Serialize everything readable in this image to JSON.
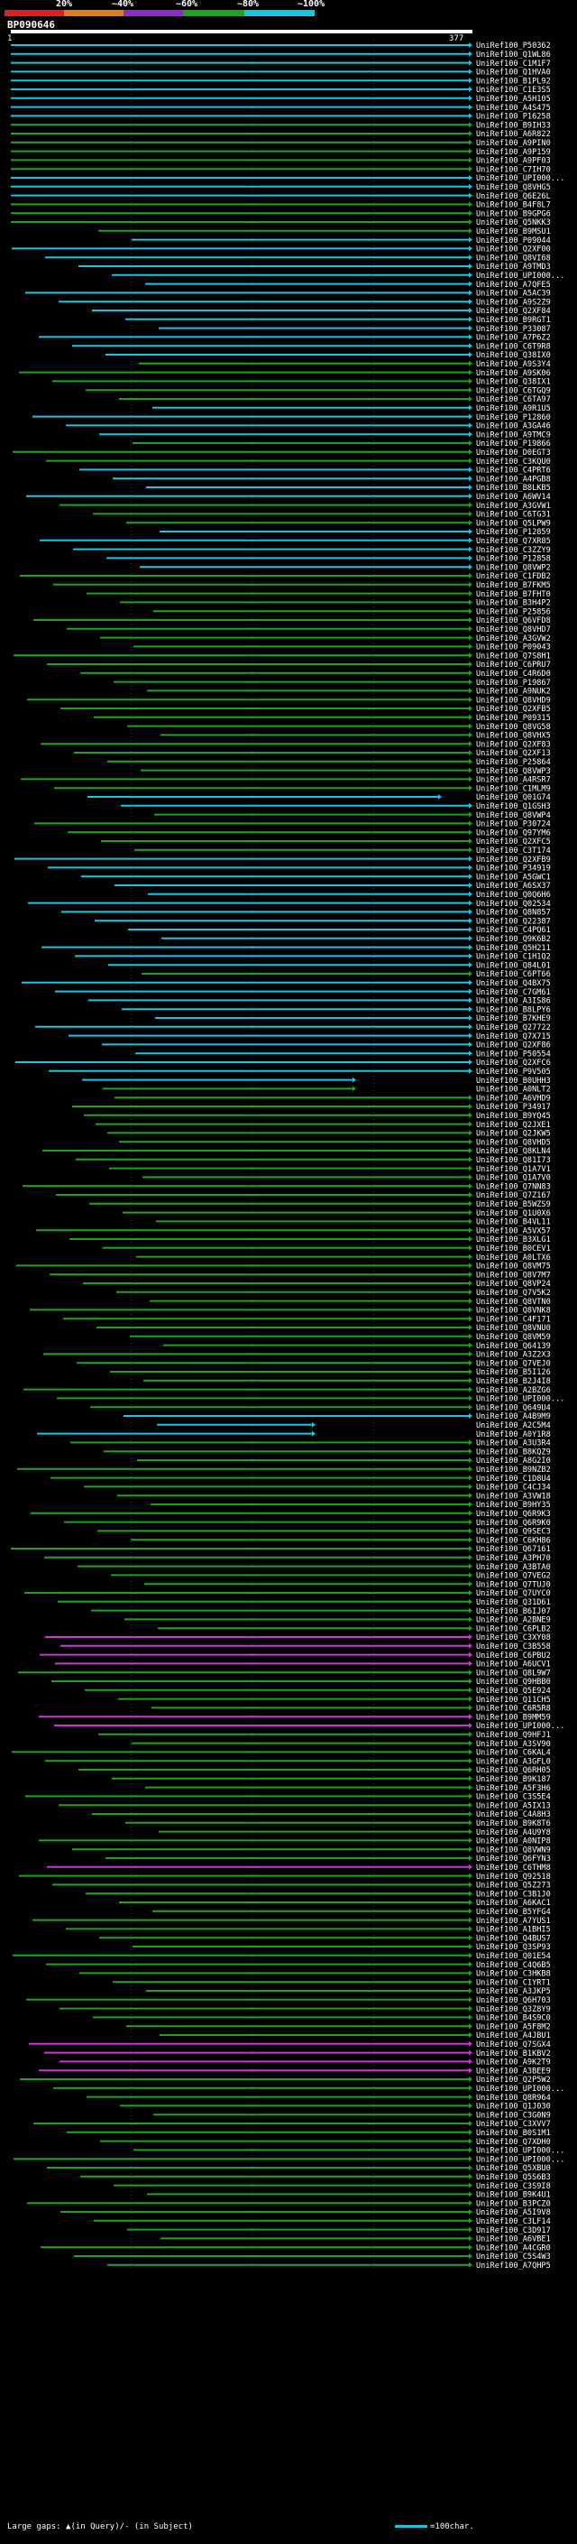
{
  "legend": {
    "labels": [
      "20%",
      "~40%",
      "~60%",
      "~80%",
      "~100%"
    ],
    "colors": [
      "#e0201c",
      "#e07e19",
      "#8c2bc8",
      "#1ea51e",
      "#19c6e0"
    ]
  },
  "query": {
    "id": "BP090646",
    "start": "1",
    "end": "377"
  },
  "footer": {
    "gaps_text": "Large gaps: ▲(in Query)/- (in Subject)",
    "scale_text": "=100char."
  },
  "hits": [
    "UniRef100_P50362",
    "UniRef100_Q1WL86",
    "UniRef100_C1M1F7",
    "UniRef100_Q1HVA0",
    "UniRef100_B1PL92",
    "UniRef100_C1E3S5",
    "UniRef100_A5H105",
    "UniRef100_A4S475",
    "UniRef100_P16258",
    "UniRef100_B9IH33",
    "UniRef100_A6R822",
    "UniRef100_A9PIN0",
    "UniRef100_A9P159",
    "UniRef100_A9PF03",
    "UniRef100_C7IH70",
    "UniRef100_UPI000...",
    "UniRef100_Q8VHG5",
    "UniRef100_Q6E26L",
    "UniRef100_B4F8L7",
    "UniRef100_B9GPG6",
    "UniRef100_Q5NKK3",
    "UniRef100_B9MSU1",
    "UniRef100_P09044",
    "UniRef100_Q2XF00",
    "UniRef100_Q8VI68",
    "UniRef100_A9TMD3",
    "UniRef100_UPI000...",
    "UniRef100_A7QFE5",
    "UniRef100_A5AC39",
    "UniRef100_A9S2Z9",
    "UniRef100_Q2XF84",
    "UniRef100_B9RGT1",
    "UniRef100_P33087",
    "UniRef100_A7P6Z2",
    "UniRef100_C6T9R8",
    "UniRef100_Q38IX0",
    "UniRef100_A9S3Y4",
    "UniRef100_A9SK06",
    "UniRef100_Q38IX1",
    "UniRef100_C6TGQ9",
    "UniRef100_C6TA97",
    "UniRef100_A9R1U5",
    "UniRef100_P12860",
    "UniRef100_A3GA46",
    "UniRef100_A9TMC9",
    "UniRef100_P19866",
    "UniRef100_D0EGT3",
    "UniRef100_C3KQU0",
    "UniRef100_C4PRT6",
    "UniRef100_A4PGB8",
    "UniRef100_B8LKB5",
    "UniRef100_A6WV14",
    "UniRef100_A3GVW1",
    "UniRef100_C6TG31",
    "UniRef100_Q5LPW9",
    "UniRef100_P12859",
    "UniRef100_Q7XR85",
    "UniRef100_C3ZZY9",
    "UniRef100_P12858",
    "UniRef100_Q8VWP2",
    "UniRef100_C1FDB2",
    "UniRef100_B7FKM5",
    "UniRef100_B7FHT0",
    "UniRef100_B3H4P2",
    "UniRef100_P25856",
    "UniRef100_Q6VFD8",
    "UniRef100_Q8VHD7",
    "UniRef100_A3GVW2",
    "UniRef100_P09043",
    "UniRef100_Q7S8H1",
    "UniRef100_C6PRU7",
    "UniRef100_C4R6D0",
    "UniRef100_P19867",
    "UniRef100_A9NUK2",
    "UniRef100_Q8VHD9",
    "UniRef100_Q2XFB5",
    "UniRef100_P09315",
    "UniRef100_Q8VG58",
    "UniRef100_Q8VHX5",
    "UniRef100_Q2XF83",
    "UniRef100_Q2XF13",
    "UniRef100_P25864",
    "UniRef100_Q8VWP3",
    "UniRef100_A4RSR7",
    "UniRef100_C1MLM9",
    "UniRef100_Q01G74",
    "UniRef100_Q1GSH3",
    "UniRef100_Q8VWP4",
    "UniRef100_P30724",
    "UniRef100_Q97YM6",
    "UniRef100_Q2XFC5",
    "UniRef100_C3T174",
    "UniRef100_Q2XFB9",
    "UniRef100_P34919",
    "UniRef100_A5GWC1",
    "UniRef100_A6SX37",
    "UniRef100_Q0Q6H6",
    "UniRef100_Q02534",
    "UniRef100_Q8N857",
    "UniRef100_Q22387",
    "UniRef100_C4PQ61",
    "UniRef100_Q9K6B2",
    "UniRef100_Q5H211",
    "UniRef100_C1H1Q2",
    "UniRef100_Q84L01",
    "UniRef100_C6PT66",
    "UniRef100_Q4BX75",
    "UniRef100_C7GM61",
    "UniRef100_A3IS86",
    "UniRef100_B8LPY6",
    "UniRef100_B7KHE9",
    "UniRef100_Q27722",
    "UniRef100_Q7X715",
    "UniRef100_Q2XF86",
    "UniRef100_P50554",
    "UniRef100_Q2XFC6",
    "UniRef100_P9V505",
    "UniRef100_B0UHH3",
    "UniRef100_A0NLT2",
    "UniRef100_A6VHD9",
    "UniRef100_P34917",
    "UniRef100_B9YQ45",
    "UniRef100_Q2JXE1",
    "UniRef100_Q2JKW5",
    "UniRef100_Q8VHD5",
    "UniRef100_Q8KLN4",
    "UniRef100_Q81I73",
    "UniRef100_Q1A7V1",
    "UniRef100_Q1A7V0",
    "UniRef100_Q7NN83",
    "UniRef100_Q7Z167",
    "UniRef100_B5WZS9",
    "UniRef100_Q1U0X6",
    "UniRef100_B4VL11",
    "UniRef100_A5VX57",
    "UniRef100_B3XLG1",
    "UniRef100_B0CEV1",
    "UniRef100_A0LTX6",
    "UniRef100_Q8VM75",
    "UniRef100_Q8V7M7",
    "UniRef100_Q8VP24",
    "UniRef100_Q7V5K2",
    "UniRef100_Q8VTN0",
    "UniRef100_Q8VNK8",
    "UniRef100_C4F171",
    "UniRef100_Q8VNU0",
    "UniRef100_Q8VM59",
    "UniRef100_Q64139",
    "UniRef100_A3Z2X3",
    "UniRef100_Q7VEJ0",
    "UniRef100_B5I126",
    "UniRef100_B2J4I8",
    "UniRef100_A2BZG6",
    "UniRef100_UPI000...",
    "UniRef100_Q649U4",
    "UniRef100_A4B9M9",
    "UniRef100_A2C5M4",
    "UniRef100_A0Y1R8",
    "UniRef100_A3U3R4",
    "UniRef100_B8KQZ9",
    "UniRef100_A8G2I0",
    "UniRef100_B9NZB2",
    "UniRef100_C1D8U4",
    "UniRef100_C4CJ34",
    "UniRef100_A3VW18",
    "UniRef100_B9HY35",
    "UniRef100_Q6R9K3",
    "UniRef100_Q6R9K0",
    "UniRef100_Q9SEC3",
    "UniRef100_C6KH86",
    "UniRef100_Q67161",
    "UniRef100_A3PH70",
    "UniRef100_A3BTA0",
    "UniRef100_Q7VEG2",
    "UniRef100_Q7TUJ0",
    "UniRef100_Q7UYC0",
    "UniRef100_Q31D61",
    "UniRef100_B6IJ07",
    "UniRef100_A2BNE9",
    "UniRef100_C6PLB2",
    "UniRef100_C3XY08",
    "UniRef100_C3B558",
    "UniRef100_C6PBU2",
    "UniRef100_A6UCV1",
    "UniRef100_Q8L9W7",
    "UniRef100_Q9HBB0",
    "UniRef100_Q5E924",
    "UniRef100_Q11CH5",
    "UniRef100_C6R5R8",
    "UniRef100_B9MM59",
    "UniRef100_UPI000...",
    "UniRef100_Q9HFJ1",
    "UniRef100_A3SV90",
    "UniRef100_C6KAL4",
    "UniRef100_A3GFL0",
    "UniRef100_Q6RH05",
    "UniRef100_B9K187",
    "UniRef100_A5F3H6",
    "UniRef100_C3S5E4",
    "UniRef100_A5IX13",
    "UniRef100_C4A8H3",
    "UniRef100_B9K8T6",
    "UniRef100_A4U9Y8",
    "UniRef100_A0NIP8",
    "UniRef100_Q8VWN9",
    "UniRef100_Q6FYN3",
    "UniRef100_C6THM8",
    "UniRef100_Q92518",
    "UniRef100_Q5Z273",
    "UniRef100_C3B1J0",
    "UniRef100_A6KAC1",
    "UniRef100_B5YFG4",
    "UniRef100_A7YUS1",
    "UniRef100_A1BHI5",
    "UniRef100_Q4BUS7",
    "UniRef100_Q3SP93",
    "UniRef100_Q01E54",
    "UniRef100_C4Q6B5",
    "UniRef100_C3HKB8",
    "UniRef100_C1YRT1",
    "UniRef100_A3JKP5",
    "UniRef100_Q6H703",
    "UniRef100_Q3Z8Y9",
    "UniRef100_B4S9C0",
    "UniRef100_A5F8M2",
    "UniRef100_A4JBU1",
    "UniRef100_Q7SGX4",
    "UniRef100_B1KBV2",
    "UniRef100_A9K2T9",
    "UniRef100_A3BEE9",
    "UniRef100_Q2P5W2",
    "UniRef100_UPI000...",
    "UniRef100_Q8R964",
    "UniRef100_Q1J030",
    "UniRef100_C3G0N9",
    "UniRef100_C3XVV7",
    "UniRef100_B0S1M1",
    "UniRef100_Q7XDH0",
    "UniRef100_UPI000...",
    "UniRef100_UPI000...",
    "UniRef100_Q5XBU0",
    "UniRef100_Q5S6B3",
    "UniRef100_C3S9I8",
    "UniRef100_B9K4U1",
    "UniRef100_B3PCZ0",
    "UniRef100_A5I9V8",
    "UniRef100_C3LF14",
    "UniRef100_C3D917",
    "UniRef100_A6VBE1",
    "UniRef100_A4CGR0",
    "UniRef100_C5S4W3",
    "UniRef100_A7QHP5"
  ]
}
